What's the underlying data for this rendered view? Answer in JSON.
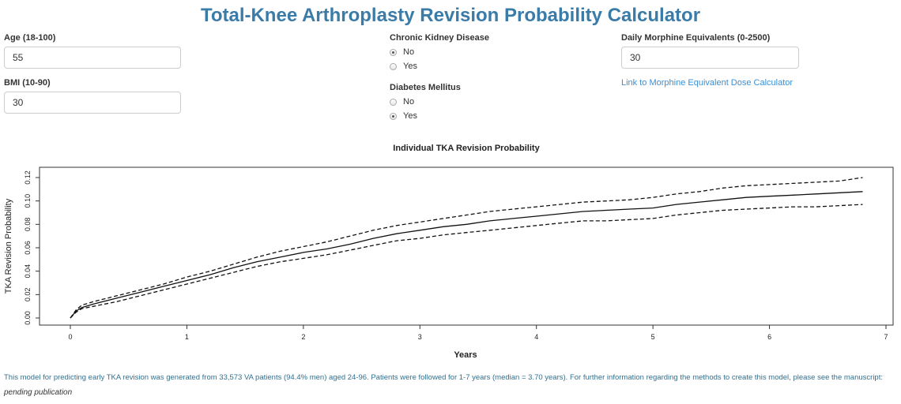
{
  "title": "Total-Knee Arthroplasty Revision Probability Calculator",
  "age": {
    "label": "Age (18-100)",
    "value": "55"
  },
  "bmi": {
    "label": "BMI (10-90)",
    "value": "30"
  },
  "ckd": {
    "label": "Chronic Kidney Disease",
    "options": [
      {
        "label": "No",
        "checked": true
      },
      {
        "label": "Yes",
        "checked": false
      }
    ]
  },
  "diabetes": {
    "label": "Diabetes Mellitus",
    "options": [
      {
        "label": "No",
        "checked": false
      },
      {
        "label": "Yes",
        "checked": true
      }
    ]
  },
  "morphine": {
    "label": "Daily Morphine Equivalents (0-2500)",
    "value": "30",
    "link": "Link to Morphine Equivalent Dose Calculator"
  },
  "footer": {
    "note": "This model for predicting early TKA revision was generated from 33,573 VA patients (94.4% men) aged 24-96. Patients were followed for 1-7 years (median = 3.70 years). For further information regarding the methods to create this model, please see the manuscript:",
    "pending": "pending publication"
  },
  "chart_data": {
    "type": "line",
    "title": "Individual TKA Revision Probability",
    "xlabel": "Years",
    "ylabel": "TKA Revision Probability",
    "xlim": [
      0,
      7
    ],
    "ylim": [
      0,
      0.125
    ],
    "xticks": [
      "0",
      "1",
      "2",
      "3",
      "4",
      "5",
      "6",
      "7"
    ],
    "yticks": [
      "0.00",
      "0.02",
      "0.04",
      "0.06",
      "0.08",
      "0.10",
      "0.12"
    ],
    "grid": false,
    "series": [
      {
        "style": "solid",
        "x": [
          0,
          0.05,
          0.1,
          0.2,
          0.4,
          0.6,
          0.8,
          1.0,
          1.2,
          1.4,
          1.6,
          1.8,
          2.0,
          2.2,
          2.4,
          2.6,
          2.8,
          3.0,
          3.2,
          3.4,
          3.6,
          3.8,
          4.0,
          4.2,
          4.4,
          4.6,
          4.8,
          5.0,
          5.2,
          5.4,
          5.6,
          5.8,
          6.0,
          6.2,
          6.4,
          6.6,
          6.8
        ],
        "y": [
          0,
          0.006,
          0.009,
          0.012,
          0.017,
          0.022,
          0.027,
          0.032,
          0.037,
          0.043,
          0.048,
          0.052,
          0.056,
          0.059,
          0.063,
          0.068,
          0.072,
          0.075,
          0.078,
          0.08,
          0.083,
          0.085,
          0.087,
          0.089,
          0.091,
          0.092,
          0.093,
          0.094,
          0.097,
          0.099,
          0.101,
          0.103,
          0.104,
          0.105,
          0.106,
          0.107,
          0.108
        ]
      },
      {
        "style": "dashed",
        "x": [
          0,
          0.05,
          0.1,
          0.2,
          0.4,
          0.6,
          0.8,
          1.0,
          1.2,
          1.4,
          1.6,
          1.8,
          2.0,
          2.2,
          2.4,
          2.6,
          2.8,
          3.0,
          3.2,
          3.4,
          3.6,
          3.8,
          4.0,
          4.2,
          4.4,
          4.6,
          4.8,
          5.0,
          5.2,
          5.4,
          5.6,
          5.8,
          6.0,
          6.2,
          6.4,
          6.6,
          6.8
        ],
        "y": [
          0,
          0.007,
          0.011,
          0.014,
          0.019,
          0.024,
          0.029,
          0.035,
          0.04,
          0.046,
          0.052,
          0.057,
          0.061,
          0.065,
          0.07,
          0.075,
          0.079,
          0.082,
          0.085,
          0.088,
          0.091,
          0.093,
          0.095,
          0.097,
          0.099,
          0.1,
          0.101,
          0.103,
          0.106,
          0.108,
          0.111,
          0.113,
          0.114,
          0.115,
          0.116,
          0.117,
          0.12
        ]
      },
      {
        "style": "dashed",
        "x": [
          0,
          0.05,
          0.1,
          0.2,
          0.4,
          0.6,
          0.8,
          1.0,
          1.2,
          1.4,
          1.6,
          1.8,
          2.0,
          2.2,
          2.4,
          2.6,
          2.8,
          3.0,
          3.2,
          3.4,
          3.6,
          3.8,
          4.0,
          4.2,
          4.4,
          4.6,
          4.8,
          5.0,
          5.2,
          5.4,
          5.6,
          5.8,
          6.0,
          6.2,
          6.4,
          6.6,
          6.8
        ],
        "y": [
          0,
          0.005,
          0.008,
          0.01,
          0.014,
          0.019,
          0.024,
          0.029,
          0.034,
          0.039,
          0.044,
          0.048,
          0.051,
          0.054,
          0.058,
          0.062,
          0.066,
          0.068,
          0.071,
          0.073,
          0.075,
          0.077,
          0.079,
          0.081,
          0.083,
          0.083,
          0.084,
          0.085,
          0.088,
          0.09,
          0.092,
          0.093,
          0.094,
          0.095,
          0.095,
          0.096,
          0.097
        ]
      }
    ]
  }
}
